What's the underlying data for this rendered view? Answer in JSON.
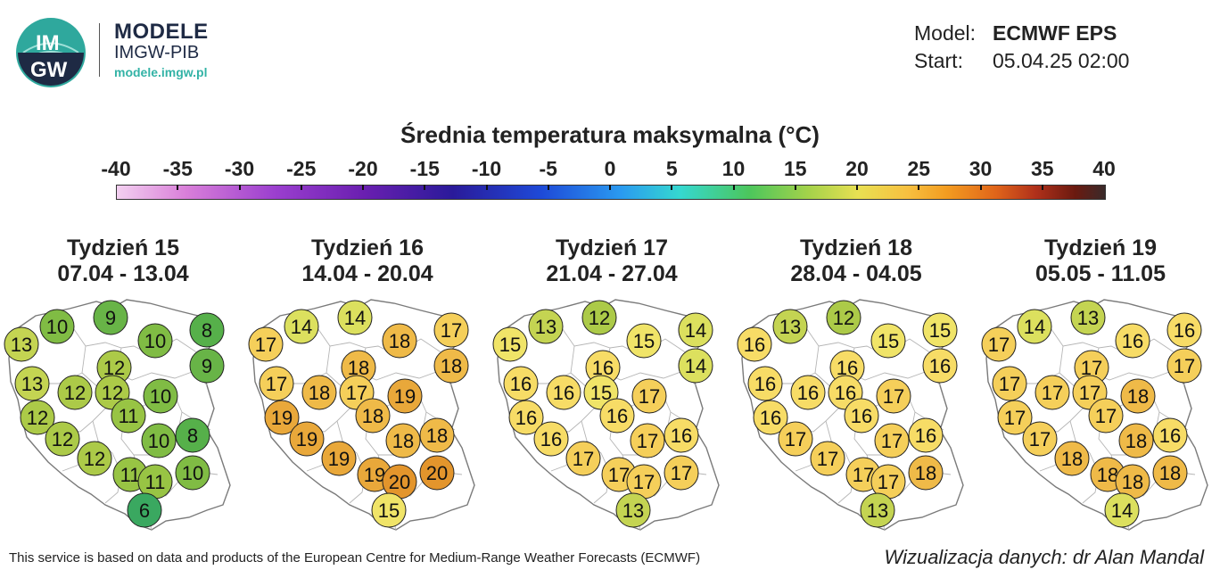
{
  "brand": {
    "logo_text_top": "IM",
    "logo_text_bottom": "GW",
    "title": "MODELE",
    "subtitle": "IMGW-PIB",
    "url": "modele.imgw.pl"
  },
  "model": {
    "model_label": "Model:",
    "model_value": "ECMWF EPS",
    "start_label": "Start:",
    "start_value": "05.04.25 02:00"
  },
  "title": "Średnia temperatura maksymalna (°C)",
  "scale": {
    "ticks": [
      "-40",
      "-35",
      "-30",
      "-25",
      "-20",
      "-15",
      "-10",
      "-5",
      "0",
      "5",
      "10",
      "15",
      "20",
      "25",
      "30",
      "35",
      "40"
    ],
    "min": -40,
    "max": 40
  },
  "maps": [
    {
      "week": "Tydzień 15",
      "dates": "07.04 - 13.04",
      "values": [
        13,
        10,
        9,
        10,
        8,
        13,
        12,
        12,
        9,
        12,
        10,
        12,
        11,
        8,
        12,
        10,
        12,
        11,
        11,
        10,
        6
      ]
    },
    {
      "week": "Tydzień 16",
      "dates": "14.04 - 20.04",
      "values": [
        17,
        14,
        14,
        18,
        17,
        17,
        18,
        18,
        18,
        17,
        19,
        19,
        18,
        18,
        19,
        18,
        19,
        19,
        20,
        20,
        15
      ]
    },
    {
      "week": "Tydzień 17",
      "dates": "21.04 - 27.04",
      "values": [
        15,
        13,
        12,
        15,
        14,
        16,
        16,
        16,
        14,
        15,
        17,
        16,
        16,
        16,
        16,
        17,
        17,
        17,
        17,
        17,
        13
      ]
    },
    {
      "week": "Tydzień 18",
      "dates": "28.04 - 04.05",
      "values": [
        16,
        13,
        12,
        15,
        15,
        16,
        16,
        16,
        16,
        16,
        17,
        16,
        16,
        16,
        17,
        17,
        17,
        17,
        17,
        18,
        13
      ]
    },
    {
      "week": "Tydzień 19",
      "dates": "05.05 - 11.05",
      "values": [
        17,
        14,
        13,
        16,
        16,
        17,
        17,
        17,
        17,
        17,
        18,
        17,
        17,
        16,
        17,
        18,
        18,
        18,
        18,
        18,
        14
      ]
    }
  ],
  "footer": {
    "left": "This service is based on data and products of the European Centre for Medium-Range Weather Forecasts (ECMWF)",
    "right": "Wizualizacja danych: dr Alan Mandal"
  }
}
